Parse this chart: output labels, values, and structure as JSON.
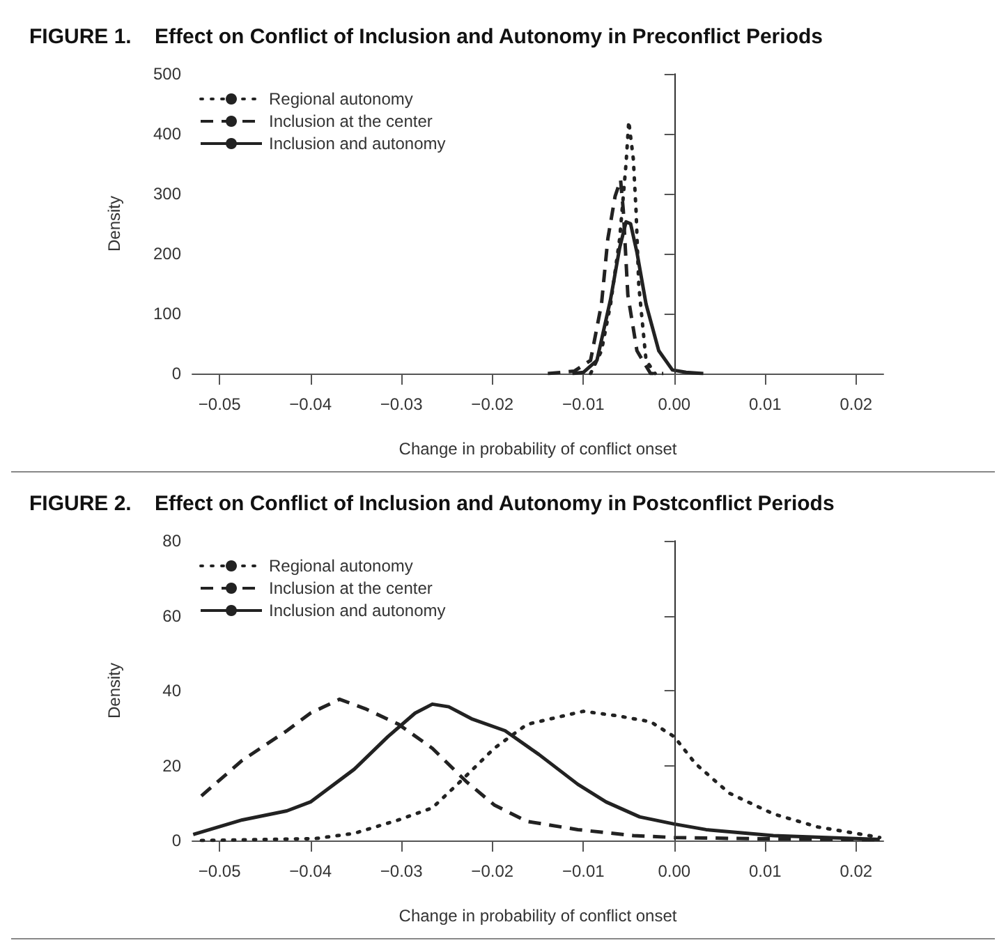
{
  "chart_data": [
    {
      "type": "line",
      "title": "FIGURE 1.    Effect on Conflict of Inclusion and Autonomy in Preconflict Periods",
      "xlabel": "Change in probability of conflict onset",
      "ylabel": "Density",
      "xlim": [
        -0.053,
        0.023
      ],
      "xticks": [
        {
          "value": -0.05,
          "label": "−0.05"
        },
        {
          "value": -0.04,
          "label": "−0.04"
        },
        {
          "value": -0.03,
          "label": "−0.03"
        },
        {
          "value": -0.02,
          "label": "−0.02"
        },
        {
          "value": -0.01,
          "label": "−0.01"
        },
        {
          "value": 0,
          "label": "0.00"
        },
        {
          "value": 0.01,
          "label": "0.01"
        },
        {
          "value": 0.02,
          "label": "0.02"
        }
      ],
      "ylim": [
        0,
        500
      ],
      "yticks": [
        0,
        100,
        200,
        300,
        400,
        500
      ],
      "grid": false,
      "legend": "top left",
      "marker": "none",
      "ref_lines": [
        {
          "axis": "x",
          "value": 0,
          "color": "#333333"
        }
      ],
      "series": [
        {
          "name": "Regional autonomy",
          "color": "#222222",
          "line_style": "dotted",
          "x": [
            -0.0092,
            -0.008,
            -0.007,
            -0.006,
            -0.0053,
            -0.005,
            -0.0045,
            -0.0042,
            -0.0039,
            -0.0031,
            -0.0021
          ],
          "values": [
            0,
            38,
            116,
            225,
            350,
            421,
            358,
            272,
            147,
            22,
            0
          ]
        },
        {
          "name": "Inclusion at the center",
          "color": "#222222",
          "line_style": "dashed",
          "x": [
            -0.0139,
            -0.011,
            -0.0092,
            -0.008,
            -0.0073,
            -0.0065,
            -0.0059,
            -0.0056,
            -0.0051,
            -0.0041,
            -0.0026,
            -0.0012
          ],
          "values": [
            0,
            4,
            22,
            116,
            225,
            296,
            323,
            272,
            131,
            38,
            0,
            0
          ]
        },
        {
          "name": "Inclusion and autonomy",
          "color": "#222222",
          "line_style": "solid",
          "x": [
            -0.0112,
            -0.01,
            -0.0085,
            -0.007,
            -0.006,
            -0.0053,
            -0.0048,
            -0.0041,
            -0.0031,
            -0.0017,
            -0.0002,
            0.0013,
            0.0032
          ],
          "values": [
            0,
            2,
            22,
            124,
            210,
            253,
            250,
            202,
            116,
            38,
            6,
            2,
            0
          ]
        }
      ]
    },
    {
      "type": "line",
      "title": "FIGURE 2.    Effect on Conflict of Inclusion and Autonomy in Postconflict Periods",
      "xlabel": "Change in probability of conflict onset",
      "ylabel": "Density",
      "xlim": [
        -0.053,
        0.023
      ],
      "xticks": [
        {
          "value": -0.05,
          "label": "−0.05"
        },
        {
          "value": -0.04,
          "label": "−0.04"
        },
        {
          "value": -0.03,
          "label": "−0.03"
        },
        {
          "value": -0.02,
          "label": "−0.02"
        },
        {
          "value": -0.01,
          "label": "−0.01"
        },
        {
          "value": 0,
          "label": "0.00"
        },
        {
          "value": 0.01,
          "label": "0.01"
        },
        {
          "value": 0.02,
          "label": "0.02"
        }
      ],
      "ylim": [
        0,
        80
      ],
      "yticks": [
        0,
        20,
        40,
        60,
        80
      ],
      "grid": false,
      "legend": "top left",
      "marker": "none",
      "ref_lines": [
        {
          "axis": "x",
          "value": 0,
          "color": "#333333"
        }
      ],
      "series": [
        {
          "name": "Regional autonomy",
          "color": "#222222",
          "line_style": "dotted",
          "x": [
            -0.052,
            -0.0395,
            -0.0352,
            -0.0303,
            -0.0266,
            -0.0235,
            -0.0198,
            -0.0162,
            -0.01,
            -0.0063,
            -0.0026,
            0,
            0.0023,
            0.006,
            0.0109,
            0.0158,
            0.0226
          ],
          "values": [
            0,
            0.5,
            1.9,
            5.5,
            8.7,
            15.8,
            24.6,
            31,
            34.5,
            33.3,
            31.7,
            27.7,
            20.6,
            12.7,
            7.1,
            3.6,
            0.8
          ]
        },
        {
          "name": "Inclusion at the center",
          "color": "#222222",
          "line_style": "dashed",
          "x": [
            -0.052,
            -0.0475,
            -0.0426,
            -0.04,
            -0.0368,
            -0.034,
            -0.0303,
            -0.0266,
            -0.0229,
            -0.0198,
            -0.0162,
            -0.0106,
            -0.0045,
            0,
            0.008,
            0.0226
          ],
          "values": [
            11.9,
            21.4,
            29.3,
            34,
            37.7,
            35.2,
            31,
            24.6,
            15.8,
            9.5,
            5.1,
            2.9,
            1.3,
            0.8,
            0.5,
            0.2
          ]
        },
        {
          "name": "Inclusion and autonomy",
          "color": "#222222",
          "line_style": "solid",
          "x": [
            -0.0529,
            -0.0475,
            -0.0426,
            -0.04,
            -0.0352,
            -0.0315,
            -0.0285,
            -0.0266,
            -0.0248,
            -0.0223,
            -0.0186,
            -0.0149,
            -0.0106,
            -0.0075,
            -0.0038,
            0,
            0.0035,
            0.0109,
            0.0226
          ],
          "values": [
            1.6,
            5.5,
            7.9,
            10.3,
            19,
            27.7,
            34,
            36.4,
            35.7,
            32.5,
            29.3,
            23,
            15,
            10.3,
            6.3,
            4.4,
            2.9,
            1.3,
            0.3
          ]
        }
      ]
    }
  ]
}
